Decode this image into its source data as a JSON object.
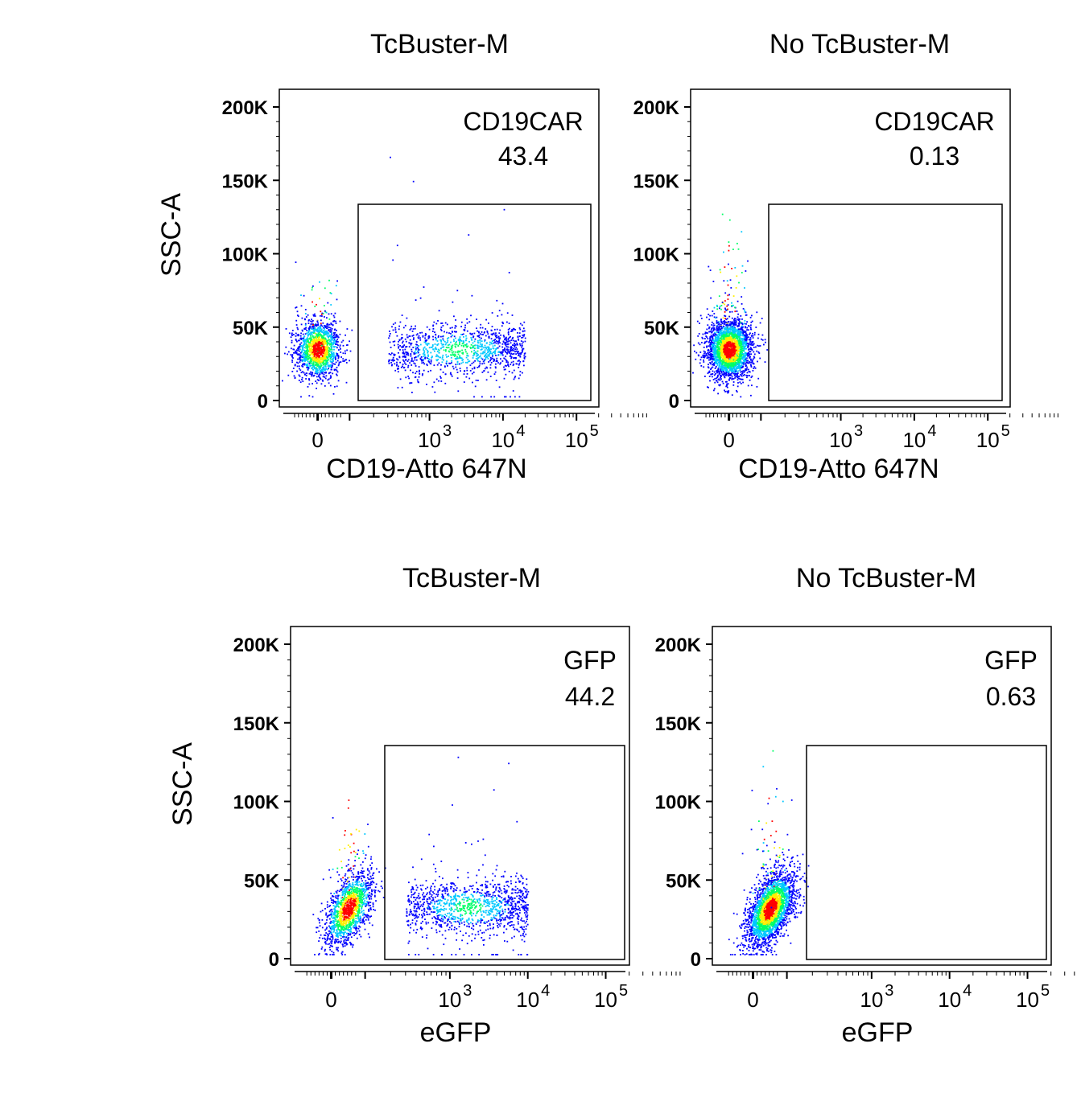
{
  "chart_data": [
    {
      "type": "scatter",
      "title": "TcBuster-M",
      "xlabel": "CD19-Atto 647N",
      "ylabel": "SSC-A",
      "x_scale": "biexponential",
      "x_ticks": [
        "0",
        "10",
        "10",
        "10"
      ],
      "x_tick_exponents": [
        "",
        "3",
        "4",
        "5"
      ],
      "y_ticks": [
        "0",
        "50K",
        "100K",
        "150K",
        "200K"
      ],
      "ylim": [
        0,
        200000
      ],
      "gate": {
        "name": "CD19CAR",
        "value": "43.4",
        "x_range": [
          "~250",
          "100000"
        ],
        "y_range": [
          0,
          135000
        ]
      },
      "populations": [
        {
          "center_x": 0,
          "center_y": 35000,
          "share": 0.56,
          "note": "negative cluster"
        },
        {
          "x_range": [
            300,
            20000
          ],
          "center_y": 35000,
          "share": 0.434,
          "note": "CD19CAR+ cells"
        }
      ]
    },
    {
      "type": "scatter",
      "title": "No TcBuster-M",
      "xlabel": "CD19-Atto 647N",
      "ylabel": "",
      "x_scale": "biexponential",
      "x_ticks": [
        "0",
        "10",
        "10",
        "10"
      ],
      "x_tick_exponents": [
        "",
        "3",
        "4",
        "5"
      ],
      "y_ticks": [
        "0",
        "50K",
        "100K",
        "150K",
        "200K"
      ],
      "ylim": [
        0,
        200000
      ],
      "gate": {
        "name": "CD19CAR",
        "value": "0.13",
        "x_range": [
          "~250",
          "100000"
        ],
        "y_range": [
          0,
          135000
        ]
      },
      "populations": [
        {
          "center_x": 0,
          "center_y": 35000,
          "share": 0.9987,
          "note": "negative cluster"
        }
      ]
    },
    {
      "type": "scatter",
      "title": "TcBuster-M",
      "xlabel": "eGFP",
      "ylabel": "SSC-A",
      "x_scale": "biexponential",
      "x_ticks": [
        "0",
        "10",
        "10",
        "10"
      ],
      "x_tick_exponents": [
        "",
        "3",
        "4",
        "5"
      ],
      "y_ticks": [
        "0",
        "50K",
        "100K",
        "150K",
        "200K"
      ],
      "ylim": [
        0,
        200000
      ],
      "gate": {
        "name": "GFP",
        "value": "44.2",
        "x_range": [
          "~250",
          "100000"
        ],
        "y_range": [
          0,
          135000
        ]
      },
      "populations": [
        {
          "center_x": 50,
          "center_y": 32000,
          "share": 0.558,
          "note": "negative cluster"
        },
        {
          "x_range": [
            300,
            10000
          ],
          "center_y": 33000,
          "share": 0.442,
          "note": "GFP+ cells"
        }
      ]
    },
    {
      "type": "scatter",
      "title": "No TcBuster-M",
      "xlabel": "eGFP",
      "ylabel": "",
      "x_scale": "biexponential",
      "x_ticks": [
        "0",
        "10",
        "10",
        "10"
      ],
      "x_tick_exponents": [
        "",
        "3",
        "4",
        "5"
      ],
      "y_ticks": [
        "0",
        "50K",
        "100K",
        "150K",
        "200K"
      ],
      "ylim": [
        0,
        200000
      ],
      "gate": {
        "name": "GFP",
        "value": "0.63",
        "x_range": [
          "~250",
          "100000"
        ],
        "y_range": [
          0,
          135000
        ]
      },
      "populations": [
        {
          "center_x": 50,
          "center_y": 32000,
          "share": 0.9937,
          "note": "negative cluster"
        }
      ]
    }
  ],
  "colors": {
    "density_low": "#0000ff",
    "density_mid": "#00c8ff",
    "density_midhigh": "#00ff66",
    "density_high": "#ffee00",
    "density_peak": "#ff0000",
    "axis": "#000000"
  }
}
